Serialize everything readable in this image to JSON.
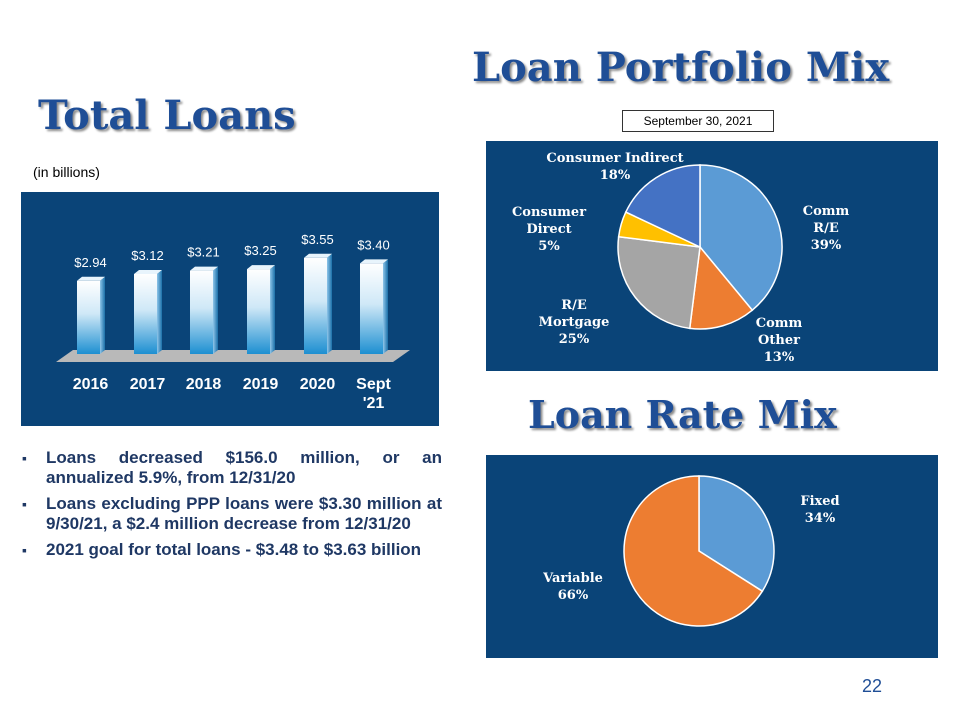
{
  "titles": {
    "total_loans": "Total Loans",
    "portfolio_mix": "Loan Portfolio Mix",
    "rate_mix": "Loan Rate Mix"
  },
  "unit_label": "(in billions)",
  "as_of_date": "September 30, 2021",
  "page_number": "22",
  "bullets": [
    "Loans decreased $156.0 million, or an annualized 5.9%, from 12/31/20",
    "Loans excluding PPP loans were $3.30 million at 9/30/21, a $2.4 million decrease from 12/31/20",
    "2021 goal for total loans - $3.48 to $3.63 billion"
  ],
  "colors": {
    "panel": "#0a4478",
    "title": "#1f4e96",
    "bullet_text": "#1f3864"
  },
  "chart_data": [
    {
      "type": "bar",
      "categories": [
        "2016",
        "2017",
        "2018",
        "2019",
        "2020",
        "Sept '21"
      ],
      "values": [
        2.94,
        3.12,
        3.21,
        3.25,
        3.55,
        3.4
      ],
      "data_labels": [
        "$2.94",
        "$3.12",
        "$3.21",
        "$3.25",
        "$3.55",
        "$3.40"
      ],
      "unit": "(in billions)",
      "grid": false,
      "style": "3d-cylinder-gradient"
    },
    {
      "type": "pie",
      "slices": [
        {
          "label": "Comm R/E",
          "pct_label": "39%",
          "value": 39,
          "color": "#5b9bd5"
        },
        {
          "label": "Comm Other",
          "pct_label": "13%",
          "value": 13,
          "color": "#ed7d31"
        },
        {
          "label": "R/E Mortgage",
          "pct_label": "25%",
          "value": 25,
          "color": "#a5a5a5"
        },
        {
          "label": "Consumer Direct",
          "pct_label": "5%",
          "value": 5,
          "color": "#ffc000"
        },
        {
          "label": "Consumer Indirect",
          "pct_label": "18%",
          "value": 18,
          "color": "#4472c4"
        }
      ]
    },
    {
      "type": "pie",
      "slices": [
        {
          "label": "Fixed",
          "pct_label": "34%",
          "value": 34,
          "color": "#5b9bd5"
        },
        {
          "label": "Variable",
          "pct_label": "66%",
          "value": 66,
          "color": "#ed7d31"
        }
      ]
    }
  ]
}
